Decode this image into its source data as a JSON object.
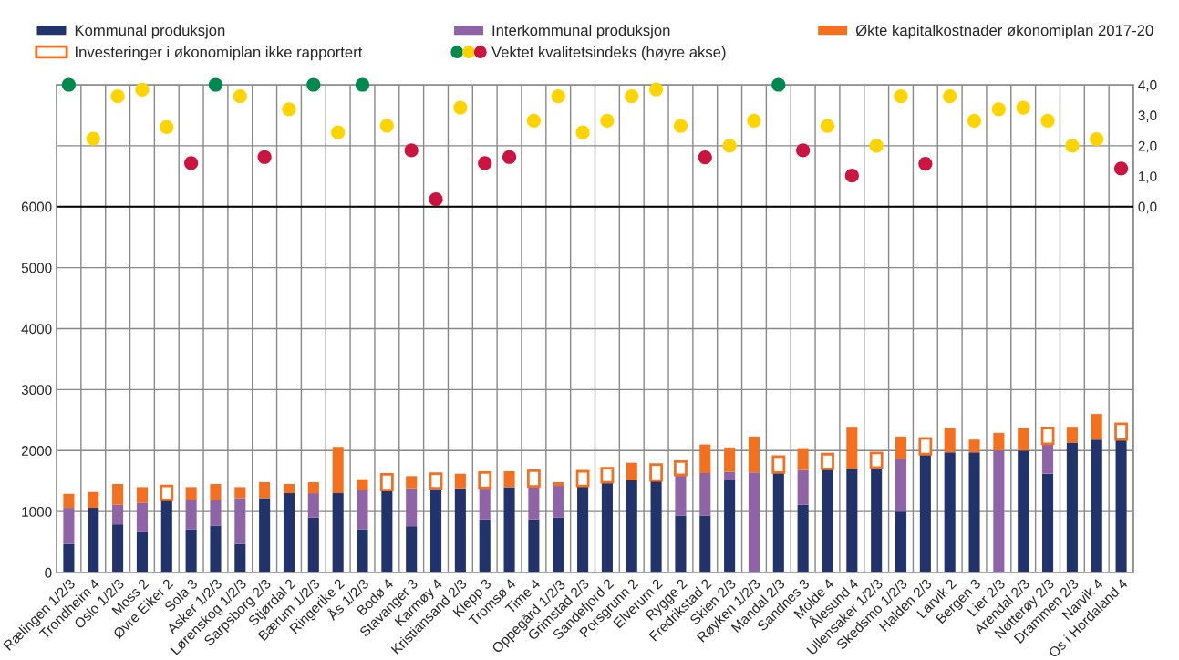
{
  "chart_data": {
    "type": "bar",
    "stacked": true,
    "legend": "top",
    "grid": true,
    "categories": [
      "Rælingen 1/2/3",
      "Trondheim 4",
      "Oslo 1/2/3",
      "Moss 2",
      "Øvre Eiker 2",
      "Sola 3",
      "Asker 1/2/3",
      "Lørenskog 1/2/3",
      "Sarpsborg 2/3",
      "Stjørdal 2",
      "Bærum 1/2/3",
      "Ringerike 2",
      "Ås 1/2/3",
      "Bodø 4",
      "Stavanger 3",
      "Karmøy 4",
      "Kristiansand 2/3",
      "Klepp 3",
      "Tromsø 4",
      "Time 4",
      "Oppegård 1/2/3",
      "Grimstad 2/3",
      "Sandefjord 2",
      "Porsgrunn 2",
      "Elverum 2",
      "Rygge 2",
      "Fredrikstad 2",
      "Skien 2/3",
      "Røyken 1/2/3",
      "Mandal 2/3",
      "Sandnes 3",
      "Molde 4",
      "Ålesund 4",
      "Ullensaker 1/2/3",
      "Skedsmo 1/2/3",
      "Halden 2/3",
      "Larvik 2",
      "Bergen 3",
      "Lier 2/3",
      "Arendal 2/3",
      "Nøtterøy 2/3",
      "Drammen 2/3",
      "Narvik 4",
      "Os i Hordaland 4"
    ],
    "series": [
      {
        "name": "Kommunal produksjon",
        "color": "#21336a",
        "values": [
          470,
          1060,
          790,
          660,
          1190,
          710,
          770,
          470,
          1220,
          1300,
          900,
          1300,
          710,
          1350,
          760,
          1380,
          1380,
          870,
          1400,
          870,
          900,
          1420,
          1480,
          1510,
          1510,
          930,
          930,
          1510,
          null,
          1640,
          1110,
          1700,
          1700,
          1720,
          1000,
          1940,
          1970,
          1970,
          null,
          2000,
          1620,
          2130,
          2180,
          2180
        ]
      },
      {
        "name": "Interkommunal produksjon",
        "color": "#8e64a6",
        "values": [
          590,
          null,
          320,
          480,
          null,
          480,
          420,
          750,
          null,
          null,
          400,
          null,
          640,
          null,
          620,
          null,
          null,
          520,
          null,
          540,
          520,
          null,
          null,
          null,
          null,
          670,
          700,
          140,
          1640,
          null,
          570,
          null,
          null,
          null,
          860,
          null,
          null,
          null,
          2000,
          null,
          490,
          null,
          null,
          null
        ]
      },
      {
        "name": "Økte kapitalkostnader økonomiplan 2017-20",
        "color": "#f37021",
        "values": [
          230,
          260,
          340,
          260,
          null,
          210,
          260,
          180,
          260,
          150,
          180,
          760,
          180,
          null,
          200,
          null,
          240,
          null,
          260,
          null,
          60,
          null,
          null,
          290,
          null,
          null,
          470,
          400,
          590,
          null,
          360,
          null,
          690,
          null,
          370,
          null,
          400,
          210,
          290,
          370,
          null,
          260,
          420,
          null
        ]
      },
      {
        "name": "Investeringer i økonomiplan ikke rapportert",
        "color": "#f37021",
        "values": [
          null,
          null,
          null,
          null,
          230,
          null,
          null,
          null,
          null,
          null,
          null,
          null,
          null,
          260,
          null,
          240,
          null,
          250,
          null,
          260,
          null,
          240,
          230,
          null,
          260,
          220,
          null,
          null,
          null,
          260,
          null,
          240,
          null,
          240,
          null,
          260,
          null,
          null,
          null,
          null,
          260,
          null,
          null,
          260
        ]
      },
      {
        "type": "scatter",
        "axis": "y2",
        "name": "Vektet kvalitetsindeks (høyre akse)",
        "values": [
          4.0,
          2.23,
          3.62,
          3.84,
          2.61,
          1.43,
          4.0,
          3.62,
          1.63,
          3.2,
          4.0,
          2.44,
          4.0,
          2.66,
          1.85,
          0.24,
          3.25,
          1.43,
          1.63,
          2.82,
          3.62,
          2.44,
          2.82,
          3.62,
          3.85,
          2.65,
          1.62,
          2.0,
          2.82,
          4.0,
          1.85,
          2.65,
          1.02,
          2.0,
          3.62,
          1.41,
          3.62,
          2.82,
          3.2,
          3.25,
          2.82,
          2.0,
          2.22,
          1.25
        ],
        "colors": [
          "#00894f",
          "#ffd400",
          "#ffd400",
          "#ffd400",
          "#ffd400",
          "#cc1441",
          "#00894f",
          "#ffd400",
          "#cc1441",
          "#ffd400",
          "#00894f",
          "#ffd400",
          "#00894f",
          "#ffd400",
          "#cc1441",
          "#cc1441",
          "#ffd400",
          "#cc1441",
          "#cc1441",
          "#ffd400",
          "#ffd400",
          "#ffd400",
          "#ffd400",
          "#ffd400",
          "#ffd400",
          "#ffd400",
          "#cc1441",
          "#ffd400",
          "#ffd400",
          "#00894f",
          "#cc1441",
          "#ffd400",
          "#cc1441",
          "#ffd400",
          "#ffd400",
          "#cc1441",
          "#ffd400",
          "#ffd400",
          "#ffd400",
          "#ffd400",
          "#ffd400",
          "#ffd400",
          "#ffd400",
          "#cc1441"
        ]
      }
    ],
    "ylim": [
      0,
      8000
    ],
    "yticks": [
      0,
      1000,
      2000,
      3000,
      4000,
      5000,
      6000,
      {
        "value": 7000,
        "label": null
      },
      {
        "value": 8000,
        "label": null
      }
    ],
    "y2lim": [
      -12,
      4
    ],
    "y2ticks": [
      {
        "value": 0,
        "label": "0,0"
      },
      {
        "value": 1,
        "label": "1,0"
      },
      {
        "value": 2,
        "label": "2,0"
      },
      {
        "value": 3,
        "label": "3,0"
      },
      {
        "value": 4,
        "label": "4,0"
      }
    ],
    "ref_lines": [
      {
        "axis": "y2",
        "value": 0,
        "color": "#000000"
      }
    ]
  }
}
